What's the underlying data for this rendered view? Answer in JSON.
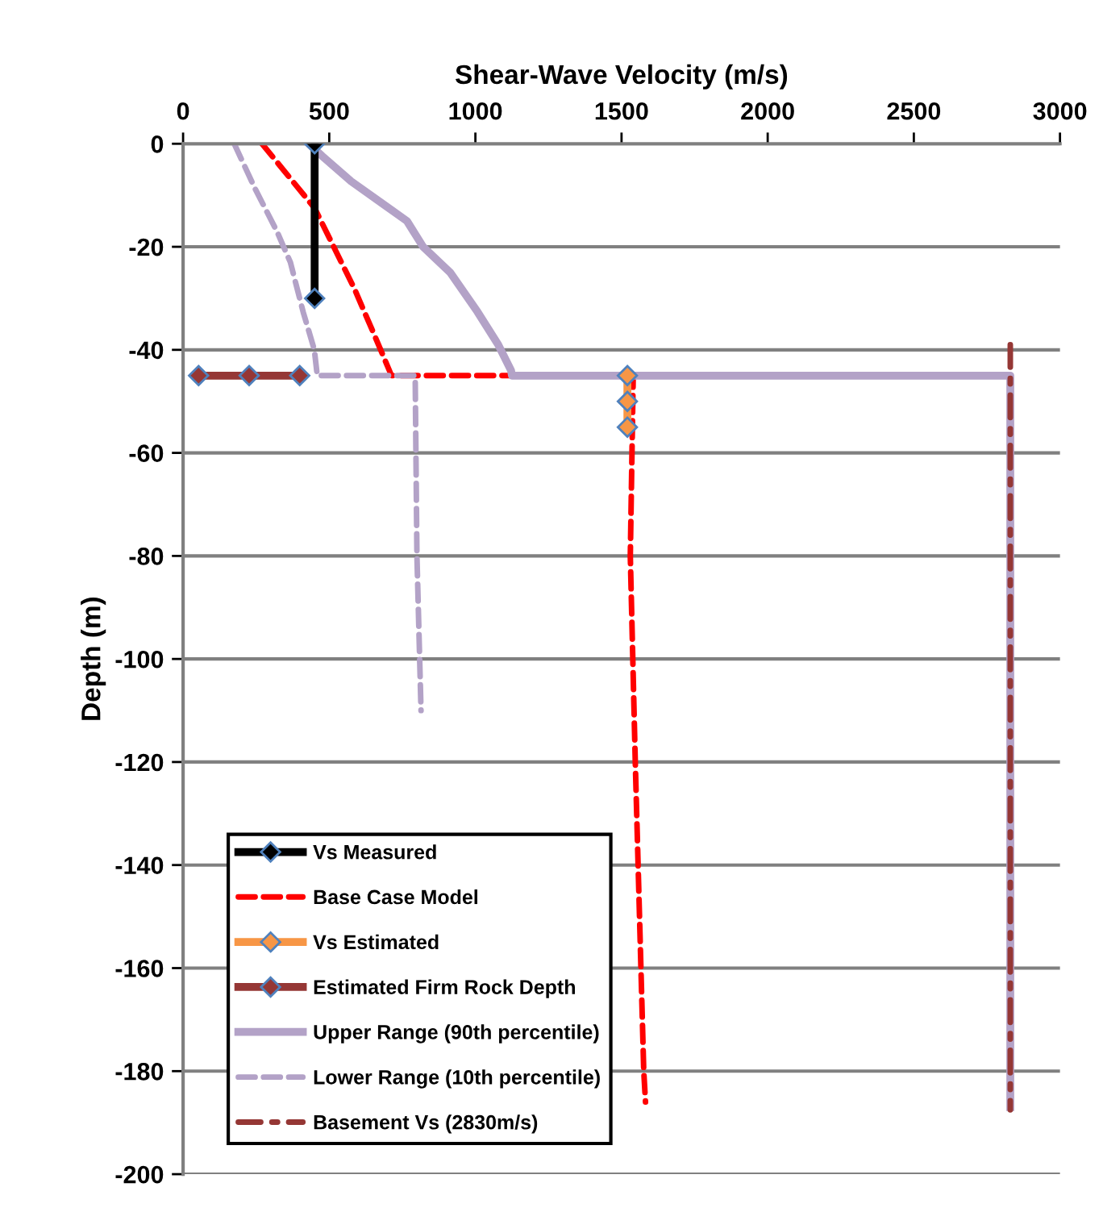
{
  "chart_data": {
    "type": "line",
    "xlabel": "Shear-Wave Velocity (m/s)",
    "ylabel": "Depth (m)",
    "xlim": [
      0,
      3000
    ],
    "xticks": [
      0,
      500,
      1000,
      1500,
      2000,
      2500,
      3000
    ],
    "ylim": [
      -200,
      0
    ],
    "yticks": [
      0,
      -20,
      -40,
      -60,
      -80,
      -100,
      -120,
      -140,
      -160,
      -180,
      -200
    ],
    "grid": "y",
    "legend": "bottom left",
    "series": [
      {
        "name": "Vs Measured",
        "color": "#000000",
        "marker": "diamond",
        "line_style": "solid",
        "x": [
          450,
          450
        ],
        "values": [
          0,
          -30
        ]
      },
      {
        "name": "Base Case Model",
        "color": "#ff0000",
        "marker": "none",
        "line_style": "dashed",
        "x": [
          270,
          450,
          585,
          658,
          713,
          1540,
          1530,
          1547,
          1576,
          1582
        ],
        "values": [
          0,
          -12.5,
          -28,
          -37.6,
          -45,
          -45,
          -80,
          -120,
          -180,
          -186
        ]
      },
      {
        "name": "Vs Estimated",
        "color": "#f79646",
        "marker": "diamond",
        "line_style": "solid",
        "x": [
          1520,
          1520,
          1520
        ],
        "values": [
          -45,
          -50,
          -55
        ]
      },
      {
        "name": "Estimated Firm Rock Depth",
        "color": "#953735",
        "marker": "diamond",
        "line_style": "solid",
        "x": [
          53,
          226,
          399
        ],
        "values": [
          -45,
          -45,
          -45
        ]
      },
      {
        "name": "Upper Range (90th percentile)",
        "color": "#b3a2c7",
        "marker": "none",
        "line_style": "solid",
        "x": [
          430,
          476,
          575,
          766,
          821,
          914,
          1007,
          1078,
          1122,
          1125,
          2830,
          2830
        ],
        "values": [
          0,
          -2.4,
          -7.3,
          -15,
          -20,
          -25,
          -32.6,
          -39,
          -44,
          -45,
          -45,
          -187
        ]
      },
      {
        "name": "Lower Range (10th percentile)",
        "color": "#b3a2c7",
        "marker": "none",
        "line_style": "dashed",
        "x": [
          175,
          246,
          321,
          367,
          411,
          449,
          459,
          794,
          800,
          814
        ],
        "values": [
          0,
          -8.7,
          -17,
          -23,
          -32.7,
          -40,
          -45,
          -45,
          -80,
          -110
        ]
      },
      {
        "name": "Basement Vs (2830m/s)",
        "color": "#953735",
        "marker": "none",
        "line_style": "dashdot",
        "x": [
          2830,
          2830
        ],
        "values": [
          -39,
          -187.5
        ]
      }
    ]
  }
}
